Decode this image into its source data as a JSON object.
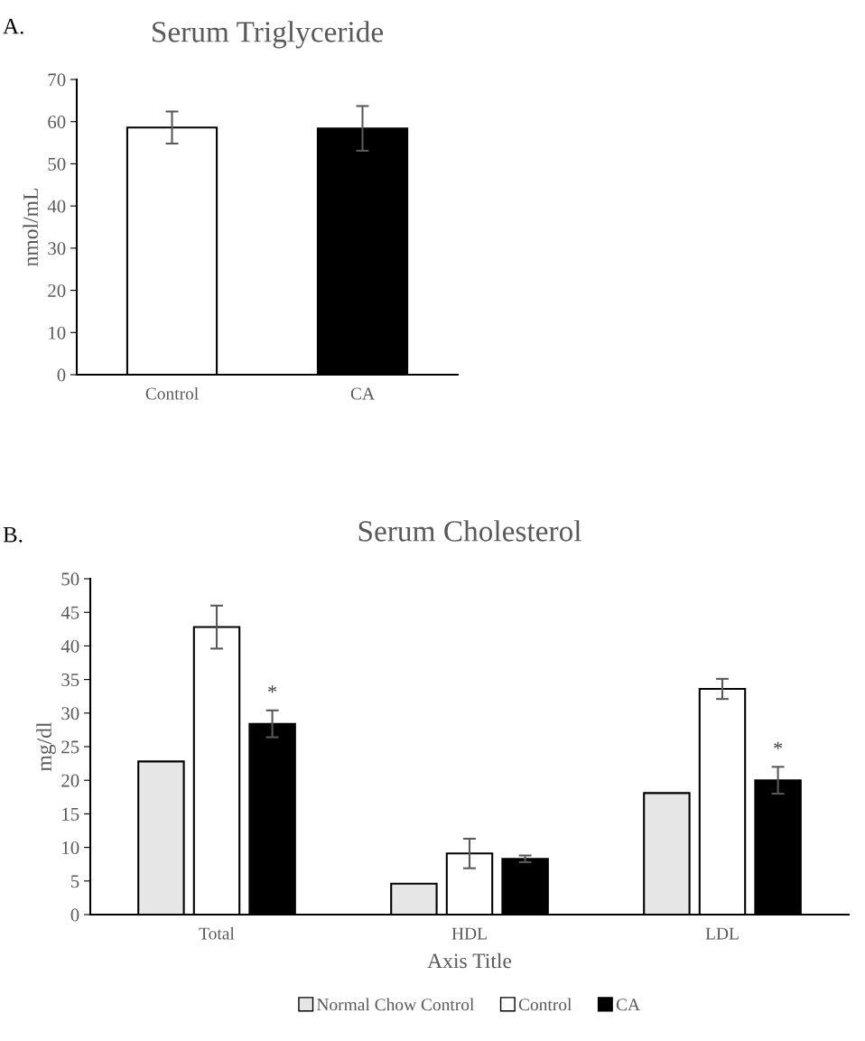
{
  "chart_data": [
    {
      "type": "bar",
      "title": "Serum Triglyceride",
      "ylabel": "nmol/mL",
      "categories": [
        "Control",
        "CA"
      ],
      "values": [
        58.6,
        58.4
      ],
      "colors": [
        "#ffffff",
        "#000000"
      ],
      "errors": [
        3.8,
        5.3
      ],
      "ylim": [
        0,
        70
      ],
      "yticks": [
        0,
        10,
        20,
        30,
        40,
        50,
        60,
        70
      ],
      "grid": false,
      "legend": false,
      "annotations": [
        "A."
      ]
    },
    {
      "type": "bar",
      "title": "Serum Cholesterol",
      "ylabel": "mg/dl",
      "xlabel": "Axis Title",
      "categories": [
        "Total",
        "HDL",
        "LDL"
      ],
      "series": [
        {
          "name": "Normal Chow Control",
          "color": "#e6e6e6",
          "values": [
            22.8,
            4.6,
            18.1
          ]
        },
        {
          "name": "Control",
          "color": "#ffffff",
          "values": [
            42.8,
            9.1,
            33.6
          ],
          "errors": [
            3.2,
            2.2,
            1.5
          ]
        },
        {
          "name": "CA",
          "color": "#000000",
          "values": [
            28.4,
            8.3,
            20.0
          ],
          "errors": [
            2.0,
            0.5,
            2.0
          ]
        }
      ],
      "ylim": [
        0,
        50
      ],
      "yticks": [
        0,
        5,
        10,
        15,
        20,
        25,
        30,
        35,
        40,
        45,
        50
      ],
      "grid": false,
      "legend": "bottom",
      "annotations": [
        "B.",
        "*",
        "*"
      ]
    }
  ]
}
